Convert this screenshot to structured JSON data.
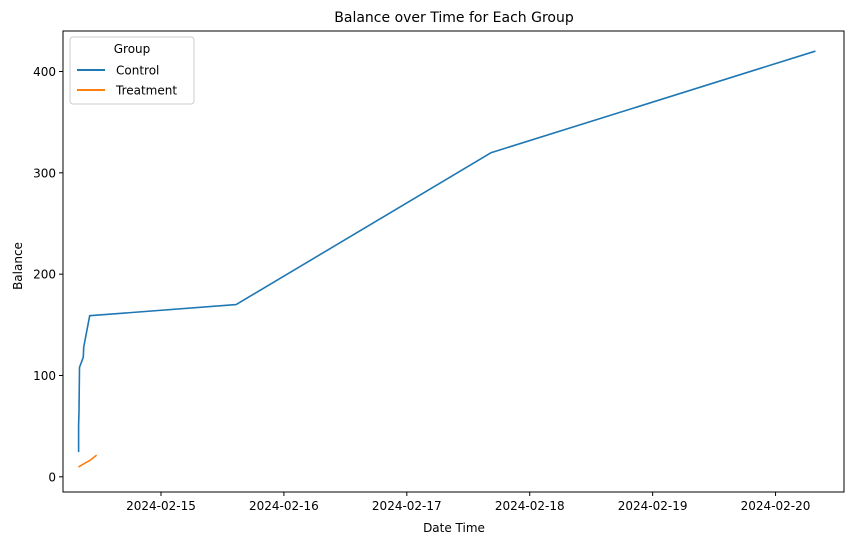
{
  "chart_data": {
    "type": "line",
    "title": "Balance over Time for Each Group",
    "xlabel": "Date Time",
    "ylabel": "Balance",
    "x_ticks": [
      "2024-02-15",
      "2024-02-16",
      "2024-02-17",
      "2024-02-18",
      "2024-02-19",
      "2024-02-20"
    ],
    "y_ticks": [
      0,
      100,
      200,
      300,
      400
    ],
    "xlim": [
      "2024-02-14T04:52",
      "2024-02-20T13:22"
    ],
    "ylim": [
      -15,
      440
    ],
    "grid": false,
    "legend": {
      "title": "Group",
      "placement": "top-left"
    },
    "series": [
      {
        "name": "Control",
        "color": "#1f77b4",
        "points": [
          {
            "x": "2024-02-14T07:55",
            "y": 25
          },
          {
            "x": "2024-02-14T07:55",
            "y": 50
          },
          {
            "x": "2024-02-14T08:00",
            "y": 65
          },
          {
            "x": "2024-02-14T08:05",
            "y": 108
          },
          {
            "x": "2024-02-14T08:50",
            "y": 118
          },
          {
            "x": "2024-02-14T08:55",
            "y": 128
          },
          {
            "x": "2024-02-14T10:05",
            "y": 159
          },
          {
            "x": "2024-02-15T14:40",
            "y": 170
          },
          {
            "x": "2024-02-17T16:30",
            "y": 320
          },
          {
            "x": "2024-02-20T07:40",
            "y": 420
          }
        ]
      },
      {
        "name": "Treatment",
        "color": "#ff7f0e",
        "points": [
          {
            "x": "2024-02-14T08:00",
            "y": 10
          },
          {
            "x": "2024-02-14T09:00",
            "y": 13
          },
          {
            "x": "2024-02-14T10:05",
            "y": 16
          },
          {
            "x": "2024-02-14T11:20",
            "y": 21
          }
        ]
      }
    ]
  }
}
